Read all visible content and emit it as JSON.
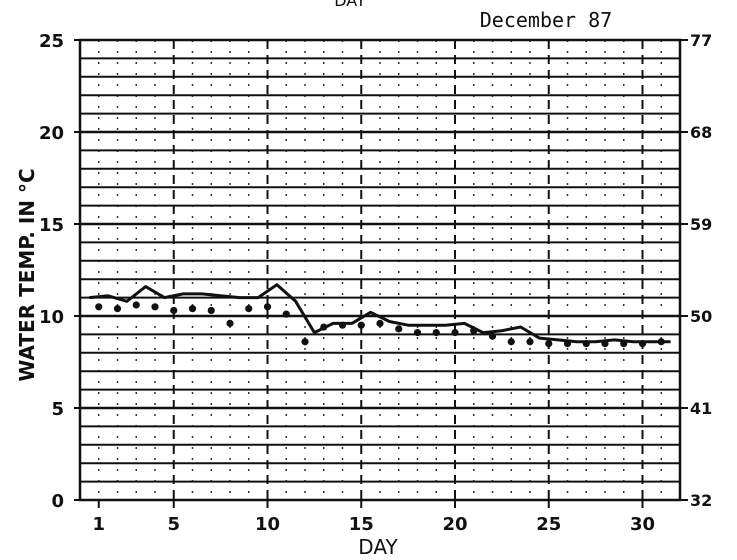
{
  "chart_data": {
    "type": "line",
    "title": "December 87",
    "xlabel": "DAY",
    "ylabel": "WATER TEMP. IN °C",
    "xlim": [
      0,
      32
    ],
    "ylim": [
      0,
      25
    ],
    "y2lim": [
      32,
      77
    ],
    "x_ticks": [
      "1",
      "5",
      "10",
      "15",
      "20",
      "25",
      "30"
    ],
    "y_ticks": [
      "0",
      "5",
      "10",
      "15",
      "20",
      "25"
    ],
    "y2_ticks": [
      "32",
      "41",
      "50",
      "59",
      "68",
      "77"
    ],
    "grid": true,
    "series": [
      {
        "style": "line",
        "x": [
          0.5,
          1.5,
          2.5,
          3.5,
          4.5,
          5.5,
          6.5,
          7.5,
          8.5,
          9.5,
          10.5,
          11.5,
          12.5,
          13.5,
          14.5,
          15.5,
          16.5,
          17.5,
          18.5,
          19.5,
          20.5,
          21.5,
          22.5,
          23.5,
          24.5,
          25.5,
          26.5,
          27.5,
          28.5,
          29.5,
          30.5,
          31.5
        ],
        "values": [
          11.0,
          11.1,
          10.8,
          11.6,
          11.0,
          11.2,
          11.2,
          11.1,
          11.0,
          11.0,
          11.7,
          10.8,
          9.1,
          9.6,
          9.6,
          10.2,
          9.7,
          9.5,
          9.5,
          9.5,
          9.6,
          9.1,
          9.2,
          9.4,
          8.8,
          8.7,
          8.6,
          8.6,
          8.7,
          8.6,
          8.6,
          8.6
        ]
      },
      {
        "style": "points",
        "x": [
          1,
          2,
          3,
          4,
          5,
          6,
          7,
          8,
          9,
          10,
          11,
          12,
          13,
          14,
          15,
          16,
          17,
          18,
          19,
          20,
          21,
          22,
          23,
          24,
          25,
          26,
          27,
          28,
          29,
          30,
          31
        ],
        "values": [
          10.5,
          10.4,
          10.6,
          10.5,
          10.3,
          10.4,
          10.3,
          9.6,
          10.4,
          10.5,
          10.1,
          8.6,
          9.4,
          9.5,
          9.5,
          9.6,
          9.3,
          9.1,
          9.1,
          9.1,
          9.2,
          8.9,
          8.6,
          8.6,
          8.5,
          8.5,
          8.5,
          8.5,
          8.5,
          8.5,
          8.6
        ]
      }
    ]
  }
}
